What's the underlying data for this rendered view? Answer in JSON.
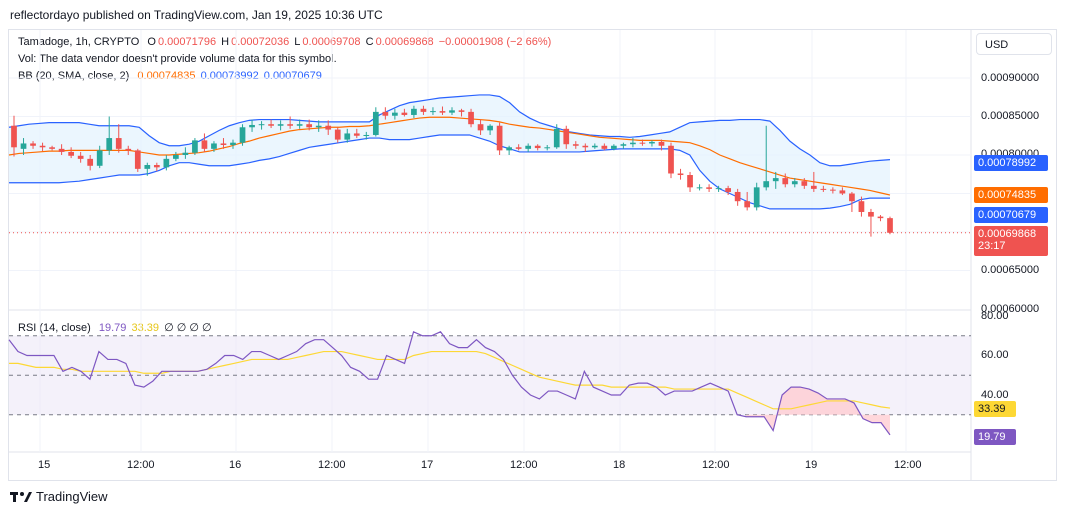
{
  "publisher_line": "reflectordayo published on TradingView.com, Jan 19, 2025 10:36 UTC",
  "legend": {
    "main": {
      "symbol": "Tamadoge, 1h, CRYPTO",
      "o_label": "O",
      "o": "0.00071796",
      "h_label": "H",
      "h": "0.00072036",
      "l_label": "L",
      "l": "0.00069708",
      "c_label": "C",
      "c": "0.00069868",
      "change": "−0.00001908 (−2.66%)"
    },
    "vol": "Vol: The data vendor doesn't provide volume data for this symbol.",
    "bb": {
      "label": "BB (20, SMA, close, 2)",
      "basis": "0.00074835",
      "upper": "0.00078992",
      "lower": "0.00070679"
    },
    "rsi": {
      "label": "RSI (14, close)",
      "rsi": "19.79",
      "ma": "33.39",
      "extra": "∅ ∅ ∅ ∅"
    }
  },
  "currency_button": "USD",
  "price_ticks": [
    "0.00090000",
    "0.00085000",
    "0.00080000",
    "0.00065000",
    "0.00060000"
  ],
  "rsi_ticks": [
    "80.00",
    "60.00",
    "40.00"
  ],
  "price_tags": {
    "upper": "0.00078992",
    "basis": "0.00074835",
    "lower": "0.00070679",
    "last": "0.00069868",
    "countdown": "23:17"
  },
  "rsi_tags": {
    "ma": "33.39",
    "rsi": "19.79"
  },
  "time_ticks": [
    "15",
    "12:00",
    "16",
    "12:00",
    "17",
    "12:00",
    "18",
    "12:00",
    "19",
    "12:00"
  ],
  "brand": "TradingView",
  "colors": {
    "up": "#26a69a",
    "down": "#ef5350",
    "bb_band": "#2962ff",
    "bb_basis": "#ff6d00",
    "bb_fill": "#e3f2fd",
    "rsi_line": "#7e57c2",
    "rsi_ma": "#fdd835",
    "rsi_bg": "#ede7f6"
  },
  "chart_data": [
    {
      "type": "candlestick",
      "title": "Tamadoge, 1h, CRYPTO",
      "ylim": [
        0.000599,
        0.000915
      ],
      "ohlc": [
        [
          0.000838,
          0.000851,
          0.000798,
          0.00081
        ],
        [
          0.000808,
          0.000822,
          0.0008,
          0.000815
        ],
        [
          0.000815,
          0.000818,
          0.000808,
          0.000812
        ],
        [
          0.000812,
          0.000816,
          0.000805,
          0.00081
        ],
        [
          0.00081,
          0.000812,
          0.000806,
          0.000808
        ],
        [
          0.000808,
          0.000814,
          0.0008,
          0.000804
        ],
        [
          0.000804,
          0.00081,
          0.000796,
          0.000799
        ],
        [
          0.000799,
          0.000804,
          0.00079,
          0.000795
        ],
        [
          0.000795,
          0.0008,
          0.00078,
          0.000786
        ],
        [
          0.000786,
          0.000812,
          0.000783,
          0.000806
        ],
        [
          0.000806,
          0.00085,
          0.0008,
          0.000822
        ],
        [
          0.000822,
          0.00084,
          0.000803,
          0.000808
        ],
        [
          0.000808,
          0.000812,
          0.0008,
          0.000806
        ],
        [
          0.000806,
          0.000808,
          0.000778,
          0.000782
        ],
        [
          0.000782,
          0.00079,
          0.000773,
          0.000787
        ],
        [
          0.000787,
          0.00079,
          0.000779,
          0.000784
        ],
        [
          0.000784,
          0.0008,
          0.00078,
          0.000795
        ],
        [
          0.000795,
          0.000804,
          0.000792,
          0.0008
        ],
        [
          0.0008,
          0.00081,
          0.000795,
          0.000803
        ],
        [
          0.000803,
          0.000822,
          0.0008,
          0.000819
        ],
        [
          0.000819,
          0.000828,
          0.000804,
          0.000808
        ],
        [
          0.000808,
          0.000818,
          0.000804,
          0.000815
        ],
        [
          0.000815,
          0.000822,
          0.000808,
          0.000813
        ],
        [
          0.000813,
          0.00082,
          0.000808,
          0.000816
        ],
        [
          0.000816,
          0.00084,
          0.000812,
          0.000836
        ],
        [
          0.000836,
          0.000846,
          0.00083,
          0.000839
        ],
        [
          0.000839,
          0.000844,
          0.000833,
          0.00084
        ],
        [
          0.00084,
          0.000846,
          0.000835,
          0.000838
        ],
        [
          0.000838,
          0.000845,
          0.000832,
          0.00084
        ],
        [
          0.00084,
          0.00085,
          0.000834,
          0.000838
        ],
        [
          0.000838,
          0.000846,
          0.000834,
          0.00084
        ],
        [
          0.00084,
          0.000846,
          0.000832,
          0.000836
        ],
        [
          0.000836,
          0.000845,
          0.00083,
          0.000838
        ],
        [
          0.000838,
          0.000845,
          0.000826,
          0.000833
        ],
        [
          0.000833,
          0.000836,
          0.000816,
          0.00082
        ],
        [
          0.00082,
          0.000834,
          0.000816,
          0.000828
        ],
        [
          0.000828,
          0.000834,
          0.000822,
          0.000825
        ],
        [
          0.000825,
          0.00083,
          0.00082,
          0.000826
        ],
        [
          0.000826,
          0.000862,
          0.000824,
          0.000856
        ],
        [
          0.000856,
          0.000862,
          0.000846,
          0.000851
        ],
        [
          0.000851,
          0.00086,
          0.000846,
          0.000855
        ],
        [
          0.000855,
          0.00086,
          0.00085,
          0.000852
        ],
        [
          0.000852,
          0.000864,
          0.000848,
          0.00086
        ],
        [
          0.00086,
          0.000864,
          0.000852,
          0.000856
        ],
        [
          0.000856,
          0.000862,
          0.000852,
          0.000857
        ],
        [
          0.000857,
          0.000863,
          0.000852,
          0.000855
        ],
        [
          0.000855,
          0.000862,
          0.000852,
          0.000858
        ],
        [
          0.000858,
          0.00086,
          0.00085,
          0.000856
        ],
        [
          0.000856,
          0.00086,
          0.000836,
          0.00084
        ],
        [
          0.00084,
          0.000846,
          0.000826,
          0.000832
        ],
        [
          0.000832,
          0.00084,
          0.000826,
          0.000838
        ],
        [
          0.000838,
          0.000842,
          0.0008,
          0.000806
        ],
        [
          0.000806,
          0.000812,
          0.0008,
          0.00081
        ],
        [
          0.00081,
          0.000814,
          0.000806,
          0.000808
        ],
        [
          0.000808,
          0.000815,
          0.000804,
          0.000812
        ],
        [
          0.000812,
          0.000814,
          0.000806,
          0.000809
        ],
        [
          0.000809,
          0.000813,
          0.000806,
          0.00081
        ],
        [
          0.00081,
          0.00084,
          0.000808,
          0.000834
        ],
        [
          0.000834,
          0.000838,
          0.000808,
          0.000814
        ],
        [
          0.000814,
          0.000818,
          0.000808,
          0.000812
        ],
        [
          0.000812,
          0.000815,
          0.000804,
          0.00081
        ],
        [
          0.00081,
          0.000815,
          0.000808,
          0.000812
        ],
        [
          0.000812,
          0.000815,
          0.000806,
          0.000808
        ],
        [
          0.000808,
          0.000814,
          0.000806,
          0.000812
        ],
        [
          0.000812,
          0.000816,
          0.000808,
          0.000814
        ],
        [
          0.000814,
          0.000822,
          0.00081,
          0.000816
        ],
        [
          0.000816,
          0.00082,
          0.000812,
          0.000815
        ],
        [
          0.000815,
          0.000819,
          0.000811,
          0.000817
        ],
        [
          0.000817,
          0.00082,
          0.000806,
          0.000812
        ],
        [
          0.000812,
          0.000816,
          0.00077,
          0.000776
        ],
        [
          0.000776,
          0.000782,
          0.000768,
          0.000774
        ],
        [
          0.000774,
          0.000778,
          0.000752,
          0.000758
        ],
        [
          0.000758,
          0.000762,
          0.000754,
          0.000758
        ],
        [
          0.000758,
          0.000762,
          0.000752,
          0.000756
        ],
        [
          0.000756,
          0.00076,
          0.000752,
          0.000757
        ],
        [
          0.000757,
          0.00076,
          0.000748,
          0.000752
        ],
        [
          0.000752,
          0.000756,
          0.000734,
          0.00074
        ],
        [
          0.00074,
          0.000752,
          0.000728,
          0.000732
        ],
        [
          0.000732,
          0.000764,
          0.000728,
          0.000758
        ],
        [
          0.000758,
          0.000838,
          0.000754,
          0.000766
        ],
        [
          0.000766,
          0.000778,
          0.000756,
          0.00077
        ],
        [
          0.00077,
          0.000776,
          0.000758,
          0.000762
        ],
        [
          0.000762,
          0.00077,
          0.000758,
          0.000766
        ],
        [
          0.000766,
          0.00077,
          0.000756,
          0.00076
        ],
        [
          0.00076,
          0.000778,
          0.000752,
          0.000756
        ],
        [
          0.000756,
          0.00076,
          0.000752,
          0.000755
        ],
        [
          0.000755,
          0.000758,
          0.00075,
          0.000754
        ],
        [
          0.000754,
          0.000758,
          0.000748,
          0.00075
        ],
        [
          0.00075,
          0.000752,
          0.000726,
          0.00074
        ],
        [
          0.00074,
          0.000746,
          0.00072,
          0.000726
        ],
        [
          0.000726,
          0.00073,
          0.000694,
          0.00072
        ],
        [
          0.00072,
          0.000722,
          0.000714,
          0.000718
        ],
        [
          0.000718,
          0.00072,
          0.000697,
          0.000699
        ]
      ],
      "bb_upper": [
        0.000836,
        0.000838,
        0.00084,
        0.000841,
        0.000842,
        0.000842,
        0.000842,
        0.000842,
        0.00084,
        0.000838,
        0.000838,
        0.000838,
        0.000838,
        0.000836,
        0.000825,
        0.000816,
        0.000812,
        0.000812,
        0.000814,
        0.000818,
        0.000825,
        0.000832,
        0.000838,
        0.000842,
        0.000845,
        0.000846,
        0.000846,
        0.000846,
        0.000846,
        0.000845,
        0.000844,
        0.000843,
        0.000843,
        0.000843,
        0.000843,
        0.000843,
        0.000843,
        0.000852,
        0.000858,
        0.000864,
        0.000868,
        0.00087,
        0.000872,
        0.000874,
        0.000875,
        0.000876,
        0.000877,
        0.000878,
        0.000878,
        0.000876,
        0.000868,
        0.000856,
        0.000848,
        0.000842,
        0.000838,
        0.000834,
        0.00083,
        0.000828,
        0.000826,
        0.000825,
        0.000824,
        0.000824,
        0.000823,
        0.000824,
        0.000826,
        0.000828,
        0.00083,
        0.000836,
        0.000842,
        0.000843,
        0.000844,
        0.000845,
        0.000845,
        0.000846,
        0.000846,
        0.000846,
        0.000844,
        0.000832,
        0.000818,
        0.000808,
        0.0008,
        0.00079,
        0.000786,
        0.000786,
        0.000788,
        0.00079,
        0.000792,
        0.000793,
        0.000794
      ],
      "bb_basis": [
        0.0008,
        0.000802,
        0.000803,
        0.000804,
        0.000805,
        0.000805,
        0.000806,
        0.000806,
        0.000806,
        0.000806,
        0.000806,
        0.000806,
        0.000806,
        0.000804,
        0.000802,
        0.0008,
        0.0008,
        0.000801,
        0.000802,
        0.000803,
        0.000805,
        0.000808,
        0.000811,
        0.000815,
        0.000818,
        0.000822,
        0.000825,
        0.000828,
        0.000831,
        0.000833,
        0.000834,
        0.000835,
        0.000836,
        0.000836,
        0.000837,
        0.000837,
        0.000838,
        0.00084,
        0.000842,
        0.000844,
        0.000846,
        0.000848,
        0.000849,
        0.000849,
        0.000849,
        0.000848,
        0.000847,
        0.000846,
        0.000845,
        0.000843,
        0.00084,
        0.000838,
        0.000836,
        0.000835,
        0.000833,
        0.000831,
        0.000829,
        0.000827,
        0.000825,
        0.000823,
        0.000822,
        0.000821,
        0.00082,
        0.000819,
        0.000819,
        0.000819,
        0.000818,
        0.000817,
        0.000816,
        0.000812,
        0.000807,
        0.0008,
        0.000795,
        0.00079,
        0.000786,
        0.000782,
        0.000778,
        0.000774,
        0.00077,
        0.000768,
        0.000766,
        0.000764,
        0.000762,
        0.00076,
        0.000758,
        0.000756,
        0.000754,
        0.000751,
        0.000748
      ],
      "bb_lower": [
        0.000764,
        0.000764,
        0.000764,
        0.000764,
        0.000764,
        0.000764,
        0.000765,
        0.000766,
        0.000768,
        0.00077,
        0.000772,
        0.000774,
        0.000774,
        0.000774,
        0.000776,
        0.00078,
        0.000786,
        0.00079,
        0.00079,
        0.000788,
        0.000786,
        0.000786,
        0.000786,
        0.000788,
        0.00079,
        0.000793,
        0.000795,
        0.000798,
        0.000802,
        0.000806,
        0.00081,
        0.000812,
        0.000814,
        0.000816,
        0.000818,
        0.00082,
        0.000822,
        0.000822,
        0.00082,
        0.00082,
        0.00082,
        0.000822,
        0.000824,
        0.000826,
        0.000826,
        0.000826,
        0.000826,
        0.000822,
        0.000818,
        0.000812,
        0.000808,
        0.000804,
        0.000804,
        0.000804,
        0.000804,
        0.000804,
        0.000804,
        0.000804,
        0.000805,
        0.000806,
        0.000807,
        0.000808,
        0.000808,
        0.000808,
        0.000808,
        0.000808,
        0.000808,
        0.000806,
        0.0008,
        0.00078,
        0.000766,
        0.000756,
        0.00075,
        0.000744,
        0.000738,
        0.000734,
        0.00073,
        0.00073,
        0.00073,
        0.00073,
        0.00073,
        0.00073,
        0.000731,
        0.000733,
        0.000736,
        0.000742,
        0.000744,
        0.000744,
        0.000744
      ]
    },
    {
      "type": "line",
      "title": "RSI (14, close)",
      "ylim": [
        20,
        80
      ],
      "bands": [
        30,
        50,
        70
      ],
      "rsi": [
        68,
        62,
        60,
        60,
        60,
        60,
        52,
        54,
        52,
        48,
        62,
        58,
        58,
        56,
        45,
        44,
        47,
        52,
        52,
        52,
        52,
        52,
        53,
        56,
        60,
        60,
        58,
        62,
        62,
        60,
        58,
        60,
        62,
        66,
        68,
        68,
        64,
        60,
        54,
        52,
        48,
        48,
        60,
        58,
        56,
        72,
        70,
        70,
        72,
        66,
        64,
        64,
        68,
        64,
        62,
        58,
        50,
        44,
        40,
        38,
        42,
        42,
        40,
        38,
        52,
        44,
        42,
        40,
        40,
        45,
        46,
        46,
        44,
        40,
        42,
        42,
        42,
        44,
        46,
        44,
        42,
        30,
        29,
        29,
        29,
        22,
        40,
        44,
        44,
        43,
        41,
        38,
        38,
        38,
        36,
        28,
        26,
        26,
        19.79
      ],
      "rsi_ma": [
        56,
        56,
        55,
        54,
        54,
        54,
        53,
        53,
        52,
        52,
        52,
        52,
        52,
        52,
        52,
        51,
        51,
        51,
        52,
        52,
        52,
        52,
        53,
        54,
        55,
        56,
        57,
        58,
        58,
        58,
        58,
        58,
        59,
        60,
        61,
        62,
        62,
        62,
        61,
        60,
        59,
        58,
        58,
        58,
        58,
        60,
        61,
        62,
        62,
        62,
        62,
        62,
        62,
        61,
        59,
        57,
        55,
        53,
        51,
        49,
        48,
        47,
        46,
        45,
        45,
        45,
        45,
        44,
        44,
        44,
        44,
        44,
        44,
        44,
        43,
        43,
        43,
        43,
        43,
        43,
        43,
        41,
        39,
        37,
        35,
        33,
        33,
        33,
        34,
        35,
        36,
        37,
        37,
        37,
        37,
        36,
        35,
        34,
        33.39
      ]
    }
  ]
}
